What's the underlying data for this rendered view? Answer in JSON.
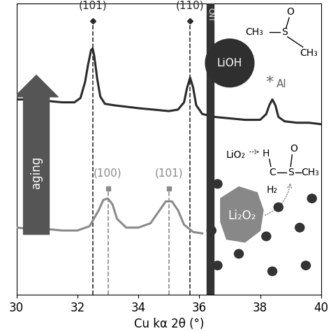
{
  "chart_data": {
    "type": "line",
    "xlabel": "Cu kα 2θ (°)",
    "xlim": [
      30,
      40
    ],
    "xticks": [
      30,
      32,
      34,
      36,
      38,
      40
    ],
    "ylim": [
      0,
      10
    ],
    "tick_labels": "x",
    "grid": false,
    "series": [
      {
        "color": "#2a2a2a",
        "x": [
          30.0,
          30.5,
          31.0,
          31.5,
          31.9,
          32.1,
          32.25,
          32.35,
          32.45,
          32.5,
          32.55,
          32.65,
          32.75,
          32.9,
          33.2,
          33.6,
          34.0,
          34.5,
          35.0,
          35.3,
          35.5,
          35.6,
          35.7,
          35.8,
          35.9,
          36.1,
          36.5,
          37.0,
          37.5,
          38.0,
          38.2,
          38.3,
          38.4,
          38.5,
          38.6,
          38.8,
          39.2,
          39.6,
          40.0
        ],
        "values": [
          6.7,
          6.7,
          6.65,
          6.6,
          6.6,
          6.75,
          7.3,
          7.9,
          8.4,
          8.45,
          8.2,
          7.4,
          6.8,
          6.55,
          6.5,
          6.45,
          6.4,
          6.35,
          6.3,
          6.35,
          6.6,
          7.1,
          7.45,
          7.1,
          6.5,
          6.2,
          6.1,
          6.05,
          6.0,
          6.0,
          6.2,
          6.5,
          6.7,
          6.5,
          6.1,
          5.95,
          5.9,
          5.9,
          5.85
        ],
        "peaks": [
          {
            "label": "(101)",
            "x": 32.5
          },
          {
            "label": "(110)",
            "x": 35.7
          }
        ],
        "annotations": [
          {
            "text": "*",
            "x": 38.3
          },
          {
            "text": "Al",
            "x": 38.7
          }
        ]
      },
      {
        "color": "#8a8a8a",
        "x": [
          30.0,
          30.5,
          31.0,
          31.5,
          32.0,
          32.4,
          32.7,
          32.85,
          33.0,
          33.15,
          33.3,
          33.6,
          34.0,
          34.4,
          34.7,
          34.9,
          35.1,
          35.3,
          35.5,
          35.8,
          36.1
        ],
        "values": [
          2.3,
          2.25,
          2.25,
          2.2,
          2.2,
          2.35,
          2.9,
          3.25,
          3.3,
          3.1,
          2.6,
          2.3,
          2.3,
          2.45,
          2.9,
          3.2,
          3.2,
          2.9,
          2.4,
          2.15,
          2.1
        ],
        "peaks": [
          {
            "label": "(100)",
            "x": 33.0
          },
          {
            "label": "(101)",
            "x": 35.0
          }
        ]
      }
    ],
    "schematic": {
      "aging": "aging",
      "cnt": "CNT",
      "lioh": "LiOH",
      "li2o2": "Li₂O₂",
      "lio2": "LiO₂",
      "molecule_top": [
        "CH₃",
        "S",
        "O",
        "CH₃"
      ],
      "molecule_bottom": [
        "H",
        "C",
        "S",
        "O",
        "CH₃",
        "H₂"
      ]
    }
  }
}
